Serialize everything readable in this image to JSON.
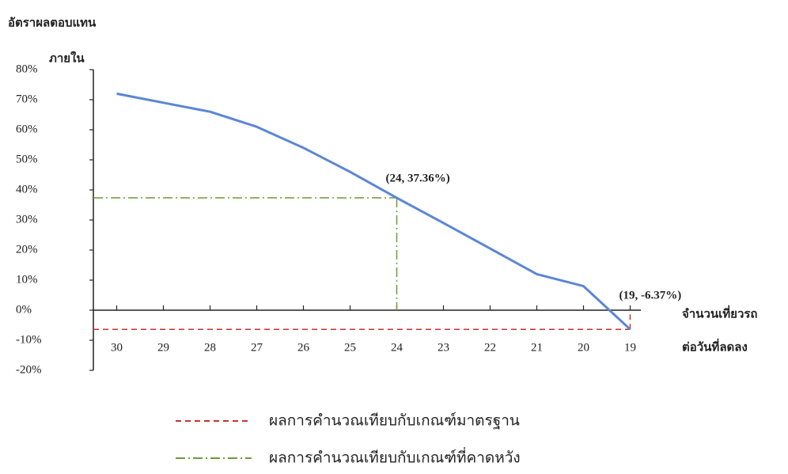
{
  "chart_data": {
    "type": "line",
    "y_label": [
      "อัตราผลตอบแทน",
      "ภายใน"
    ],
    "x_label": [
      "จำนวนเที่ยวรถ",
      "ต่อวันที่ลดลง"
    ],
    "x": [
      30,
      29,
      28,
      27,
      26,
      25,
      24,
      23,
      22,
      21,
      20,
      19
    ],
    "values": [
      72,
      69,
      66,
      61,
      54,
      46,
      37.36,
      29,
      20.5,
      12,
      8,
      -6.37
    ],
    "color": "#5b86d6",
    "xlim": [
      30.5,
      18.5
    ],
    "xticks": [
      30,
      29,
      28,
      27,
      26,
      25,
      24,
      23,
      22,
      21,
      20,
      19
    ],
    "ylim": [
      -20,
      80
    ],
    "yticks": [
      {
        "value": -20,
        "label": "-20%"
      },
      {
        "value": -10,
        "label": "-10%"
      },
      {
        "value": 0,
        "label": "0%"
      },
      {
        "value": 10,
        "label": "10%"
      },
      {
        "value": 20,
        "label": "20%"
      },
      {
        "value": 30,
        "label": "30%"
      },
      {
        "value": 40,
        "label": "40%"
      },
      {
        "value": 50,
        "label": "50%"
      },
      {
        "value": 60,
        "label": "60%"
      },
      {
        "value": 70,
        "label": "70%"
      },
      {
        "value": 80,
        "label": "80%"
      }
    ],
    "reference_lines": [
      {
        "name": "ผลการคำนวณเทียบกับเกณฑ์มาตรฐาน",
        "color": "#c8322d",
        "dash": "7,5",
        "x": 19,
        "y": -6.37,
        "label": "(19, -6.37%)"
      },
      {
        "name": "ผลการคำนวณเทียบกับเกณฑ์ที่คาดหวัง",
        "color": "#6f9a3a",
        "dash": "12,4,2,4",
        "x": 24,
        "y": 37.36,
        "label": "(24, 37.36%)"
      }
    ]
  }
}
